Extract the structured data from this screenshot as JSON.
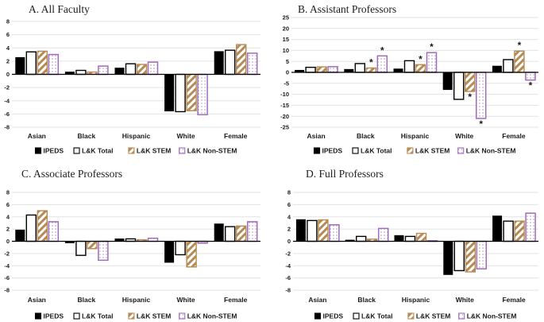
{
  "figure": {
    "background": "#ffffff",
    "colors": {
      "ipeds": "#000000",
      "bar_fill_white": "#ffffff",
      "stem_tan": "#b6control",
      "stem": "#b68a52",
      "nonstem": "#9e6cb8",
      "nonstem_dot": "#c2a6d6",
      "gridline": "#e2e2e2",
      "axis": "#000000",
      "text": "#1a1a1a"
    },
    "significance_marker": "*"
  },
  "legend": {
    "items": [
      {
        "name": "ipeds",
        "label": "IPEDS"
      },
      {
        "name": "lk-total",
        "label": "L&K Total"
      },
      {
        "name": "lk-stem",
        "label": "L&K STEM"
      },
      {
        "name": "lk-nonstem",
        "label": "L&K Non-STEM"
      }
    ]
  },
  "chart_data": [
    {
      "id": "A",
      "type": "bar",
      "title": "A. All Faculty",
      "ylim": [
        -8,
        8
      ],
      "ytick_step": 2,
      "yticks": [
        8,
        6,
        4,
        2,
        0,
        -2,
        -4,
        -6,
        -8
      ],
      "grid": true,
      "legend_position": "bottom",
      "categories": [
        "Asian",
        "Black",
        "Hispanic",
        "White",
        "Female"
      ],
      "series": [
        {
          "name": "IPEDS",
          "values": [
            2.6,
            0.4,
            1.0,
            -5.6,
            3.5
          ],
          "stars": [
            false,
            false,
            false,
            false,
            false
          ]
        },
        {
          "name": "L&K Total",
          "values": [
            3.4,
            0.6,
            1.6,
            -5.65,
            3.65
          ],
          "stars": [
            false,
            false,
            false,
            false,
            false
          ]
        },
        {
          "name": "L&K STEM",
          "values": [
            3.5,
            0.35,
            1.5,
            -5.5,
            4.5
          ],
          "stars": [
            false,
            false,
            false,
            false,
            false
          ]
        },
        {
          "name": "L&K Non-STEM",
          "values": [
            3.0,
            1.25,
            1.85,
            -6.1,
            3.2
          ],
          "stars": [
            false,
            false,
            false,
            false,
            false
          ]
        }
      ]
    },
    {
      "id": "B",
      "type": "bar",
      "title": "B. Assistant Professors",
      "ylim": [
        -25,
        25
      ],
      "ytick_step": 5,
      "yticks": [
        25,
        20,
        15,
        10,
        5,
        0,
        -5,
        -10,
        -15,
        -20,
        -25
      ],
      "grid": true,
      "legend_position": "bottom",
      "categories": [
        "Asian",
        "Black",
        "Hispanic",
        "White",
        "Female"
      ],
      "series": [
        {
          "name": "IPEDS",
          "values": [
            1.1,
            1.5,
            1.7,
            -8.0,
            3.0
          ],
          "stars": [
            false,
            false,
            false,
            false,
            false
          ]
        },
        {
          "name": "L&K Total",
          "values": [
            2.3,
            4.0,
            5.3,
            -12.3,
            5.8
          ],
          "stars": [
            false,
            false,
            false,
            false,
            false
          ]
        },
        {
          "name": "L&K STEM",
          "values": [
            2.5,
            2.0,
            3.5,
            -8.7,
            9.7
          ],
          "stars": [
            false,
            true,
            true,
            true,
            true
          ]
        },
        {
          "name": "L&K Non-STEM",
          "values": [
            2.6,
            7.5,
            9.0,
            -21.0,
            -3.5
          ],
          "stars": [
            false,
            true,
            true,
            true,
            true
          ]
        }
      ]
    },
    {
      "id": "C",
      "type": "bar",
      "title": "C. Associate Professors",
      "ylim": [
        -8,
        8
      ],
      "ytick_step": 2,
      "yticks": [
        8,
        6,
        4,
        2,
        0,
        -2,
        -4,
        -6,
        -8
      ],
      "grid": true,
      "legend_position": "bottom",
      "categories": [
        "Asian",
        "Black",
        "Hispanic",
        "White",
        "Female"
      ],
      "series": [
        {
          "name": "IPEDS",
          "values": [
            1.9,
            -0.3,
            0.45,
            -3.5,
            2.9
          ],
          "stars": [
            false,
            false,
            false,
            false,
            false
          ]
        },
        {
          "name": "L&K Total",
          "values": [
            4.3,
            -2.3,
            0.4,
            -2.2,
            2.4
          ],
          "stars": [
            false,
            false,
            false,
            false,
            false
          ]
        },
        {
          "name": "L&K STEM",
          "values": [
            5.0,
            -1.2,
            0.25,
            -4.2,
            2.5
          ],
          "stars": [
            false,
            false,
            false,
            false,
            false
          ]
        },
        {
          "name": "L&K Non-STEM",
          "values": [
            3.2,
            -3.1,
            0.5,
            -0.3,
            3.2
          ],
          "stars": [
            false,
            false,
            false,
            false,
            false
          ]
        }
      ]
    },
    {
      "id": "D",
      "type": "bar",
      "title": "D. Full Professors",
      "ylim": [
        -8,
        8
      ],
      "ytick_step": 2,
      "yticks": [
        8,
        6,
        4,
        2,
        0,
        -2,
        -4,
        -6,
        -8
      ],
      "grid": true,
      "legend_position": "bottom",
      "categories": [
        "Asian",
        "Black",
        "Hispanic",
        "White",
        "Female"
      ],
      "series": [
        {
          "name": "IPEDS",
          "values": [
            3.6,
            0.25,
            1.0,
            -5.5,
            4.2
          ],
          "stars": [
            false,
            false,
            false,
            false,
            false
          ]
        },
        {
          "name": "L&K Total",
          "values": [
            3.4,
            0.8,
            0.8,
            -4.8,
            3.3
          ],
          "stars": [
            false,
            false,
            false,
            false,
            false
          ]
        },
        {
          "name": "L&K STEM",
          "values": [
            3.5,
            0.35,
            1.3,
            -5.0,
            3.3
          ],
          "stars": [
            false,
            false,
            false,
            false,
            false
          ]
        },
        {
          "name": "L&K Non-STEM",
          "values": [
            2.7,
            2.1,
            0.1,
            -4.5,
            4.6
          ],
          "stars": [
            false,
            false,
            false,
            false,
            false
          ]
        }
      ]
    }
  ]
}
